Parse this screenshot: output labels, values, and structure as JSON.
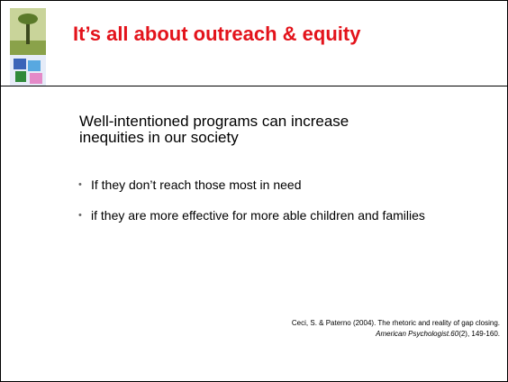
{
  "header": {
    "title": "It’s all about outreach & equity"
  },
  "body": {
    "lead": "Well-intentioned programs can increase inequities in our society",
    "bullets": [
      "If they don’t reach those most in need",
      "if they are more effective for more able children and families"
    ]
  },
  "citation": {
    "text": "Ceci, S. & Paterno (2004). The rhetoric and reality of gap closing.",
    "journal": "American Psychologist.60",
    "rest": "(2), 149-160."
  }
}
